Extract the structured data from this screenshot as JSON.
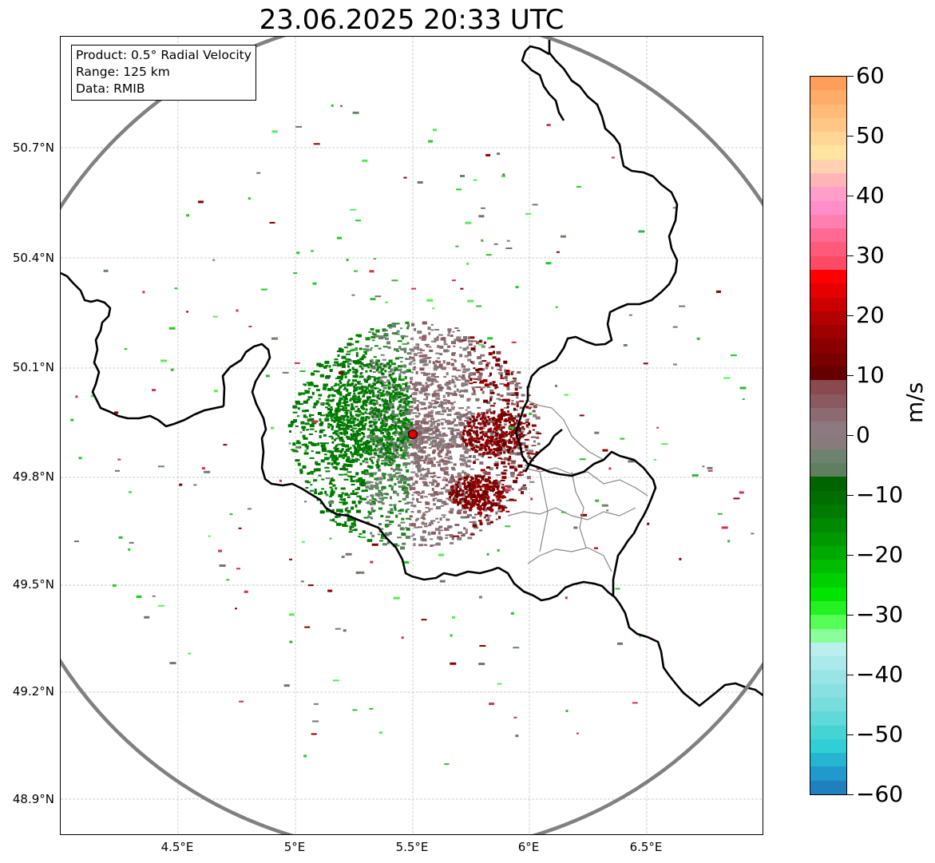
{
  "title": "23.06.2025 20:33 UTC",
  "info_box": {
    "product": "Product: 0.5° Radial Velocity",
    "range": "Range: 125 km",
    "data": "Data: RMIB"
  },
  "axes": {
    "lat_labels": [
      "50.7°N",
      "50.4°N",
      "50.1°N",
      "49.8°N",
      "49.5°N",
      "49.2°N",
      "48.9°N"
    ],
    "lon_labels": [
      "4.5°E",
      "5°E",
      "5.5°E",
      "6°E",
      "6.5°E"
    ]
  },
  "colorbar": {
    "unit": "m/s",
    "tick_labels": [
      "60",
      "50",
      "40",
      "30",
      "20",
      "10",
      "0",
      "−10",
      "−20",
      "−30",
      "−40",
      "−50",
      "−60"
    ],
    "range": [
      -60,
      60
    ]
  },
  "colors": {
    "range_ring": "#808080",
    "borders": "#000000",
    "admin_borders": "#888888",
    "radar_site": "#e00000",
    "approaching_green": "#008000",
    "receding_red": "#8b0000",
    "zero_gray": "#877b7b"
  }
}
